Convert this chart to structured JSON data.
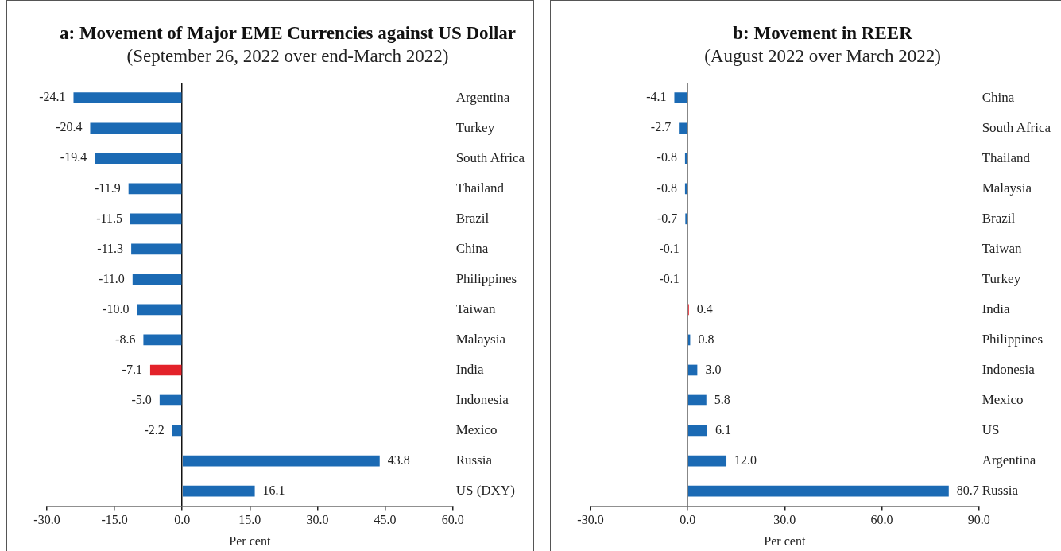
{
  "chart_data": [
    {
      "type": "bar",
      "orientation": "horizontal",
      "title": "a: Movement of Major EME Currencies against US Dollar",
      "subtitle": "(September 26, 2022 over end-March 2022)",
      "xlabel": "Per cent",
      "categories": [
        "Argentina",
        "Turkey",
        "South Africa",
        "Thailand",
        "Brazil",
        "China",
        "Philippines",
        "Taiwan",
        "Malaysia",
        "India",
        "Indonesia",
        "Mexico",
        "Russia",
        "US (DXY)"
      ],
      "values": [
        -24.1,
        -20.4,
        -19.4,
        -11.9,
        -11.5,
        -11.3,
        -11.0,
        -10.0,
        -8.6,
        -7.1,
        -5.0,
        -2.2,
        43.8,
        16.1
      ],
      "value_labels": [
        "-24.1",
        "-20.4",
        "-19.4",
        "-11.9",
        "-11.5",
        "-11.3",
        "-11.0",
        "-10.0",
        "-8.6",
        "-7.1",
        "-5.0",
        "-2.2",
        "43.8",
        "16.1"
      ],
      "colors": [
        "#1b6ab4",
        "#1b6ab4",
        "#1b6ab4",
        "#1b6ab4",
        "#1b6ab4",
        "#1b6ab4",
        "#1b6ab4",
        "#1b6ab4",
        "#1b6ab4",
        "#e3222a",
        "#1b6ab4",
        "#1b6ab4",
        "#1b6ab4",
        "#1b6ab4"
      ],
      "xlim": [
        -30,
        60
      ],
      "xticks": [
        {
          "value": -30,
          "label": "-30.0"
        },
        {
          "value": -15,
          "label": "-15.0"
        },
        {
          "value": 0,
          "label": "0.0"
        },
        {
          "value": 15,
          "label": "15.0"
        },
        {
          "value": 30,
          "label": "30.0"
        },
        {
          "value": 45,
          "label": "45.0"
        },
        {
          "value": 60,
          "label": "60.0"
        }
      ]
    },
    {
      "type": "bar",
      "orientation": "horizontal",
      "title": "b: Movement in REER",
      "subtitle": "(August 2022 over March 2022)",
      "xlabel": "Per cent",
      "categories": [
        "China",
        "South Africa",
        "Thailand",
        "Malaysia",
        "Brazil",
        "Taiwan",
        "Turkey",
        "India",
        "Philippines",
        "Indonesia",
        "Mexico",
        "US",
        "Argentina",
        "Russia"
      ],
      "values": [
        -4.1,
        -2.7,
        -0.8,
        -0.8,
        -0.7,
        -0.1,
        -0.1,
        0.4,
        0.8,
        3.0,
        5.8,
        6.1,
        12.0,
        80.7
      ],
      "value_labels": [
        "-4.1",
        "-2.7",
        "-0.8",
        "-0.8",
        "-0.7",
        "-0.1",
        "-0.1",
        "0.4",
        "0.8",
        "3.0",
        "5.8",
        "6.1",
        "12.0",
        "80.7"
      ],
      "colors": [
        "#1b6ab4",
        "#1b6ab4",
        "#1b6ab4",
        "#1b6ab4",
        "#1b6ab4",
        "#1b6ab4",
        "#1b6ab4",
        "#e3222a",
        "#1b6ab4",
        "#1b6ab4",
        "#1b6ab4",
        "#1b6ab4",
        "#1b6ab4",
        "#1b6ab4"
      ],
      "xlim": [
        -30,
        90
      ],
      "xticks": [
        {
          "value": -30,
          "label": "-30.0"
        },
        {
          "value": 0,
          "label": "0.0"
        },
        {
          "value": 30,
          "label": "30.0"
        },
        {
          "value": 60,
          "label": "60.0"
        },
        {
          "value": 90,
          "label": "90.0"
        }
      ]
    }
  ]
}
